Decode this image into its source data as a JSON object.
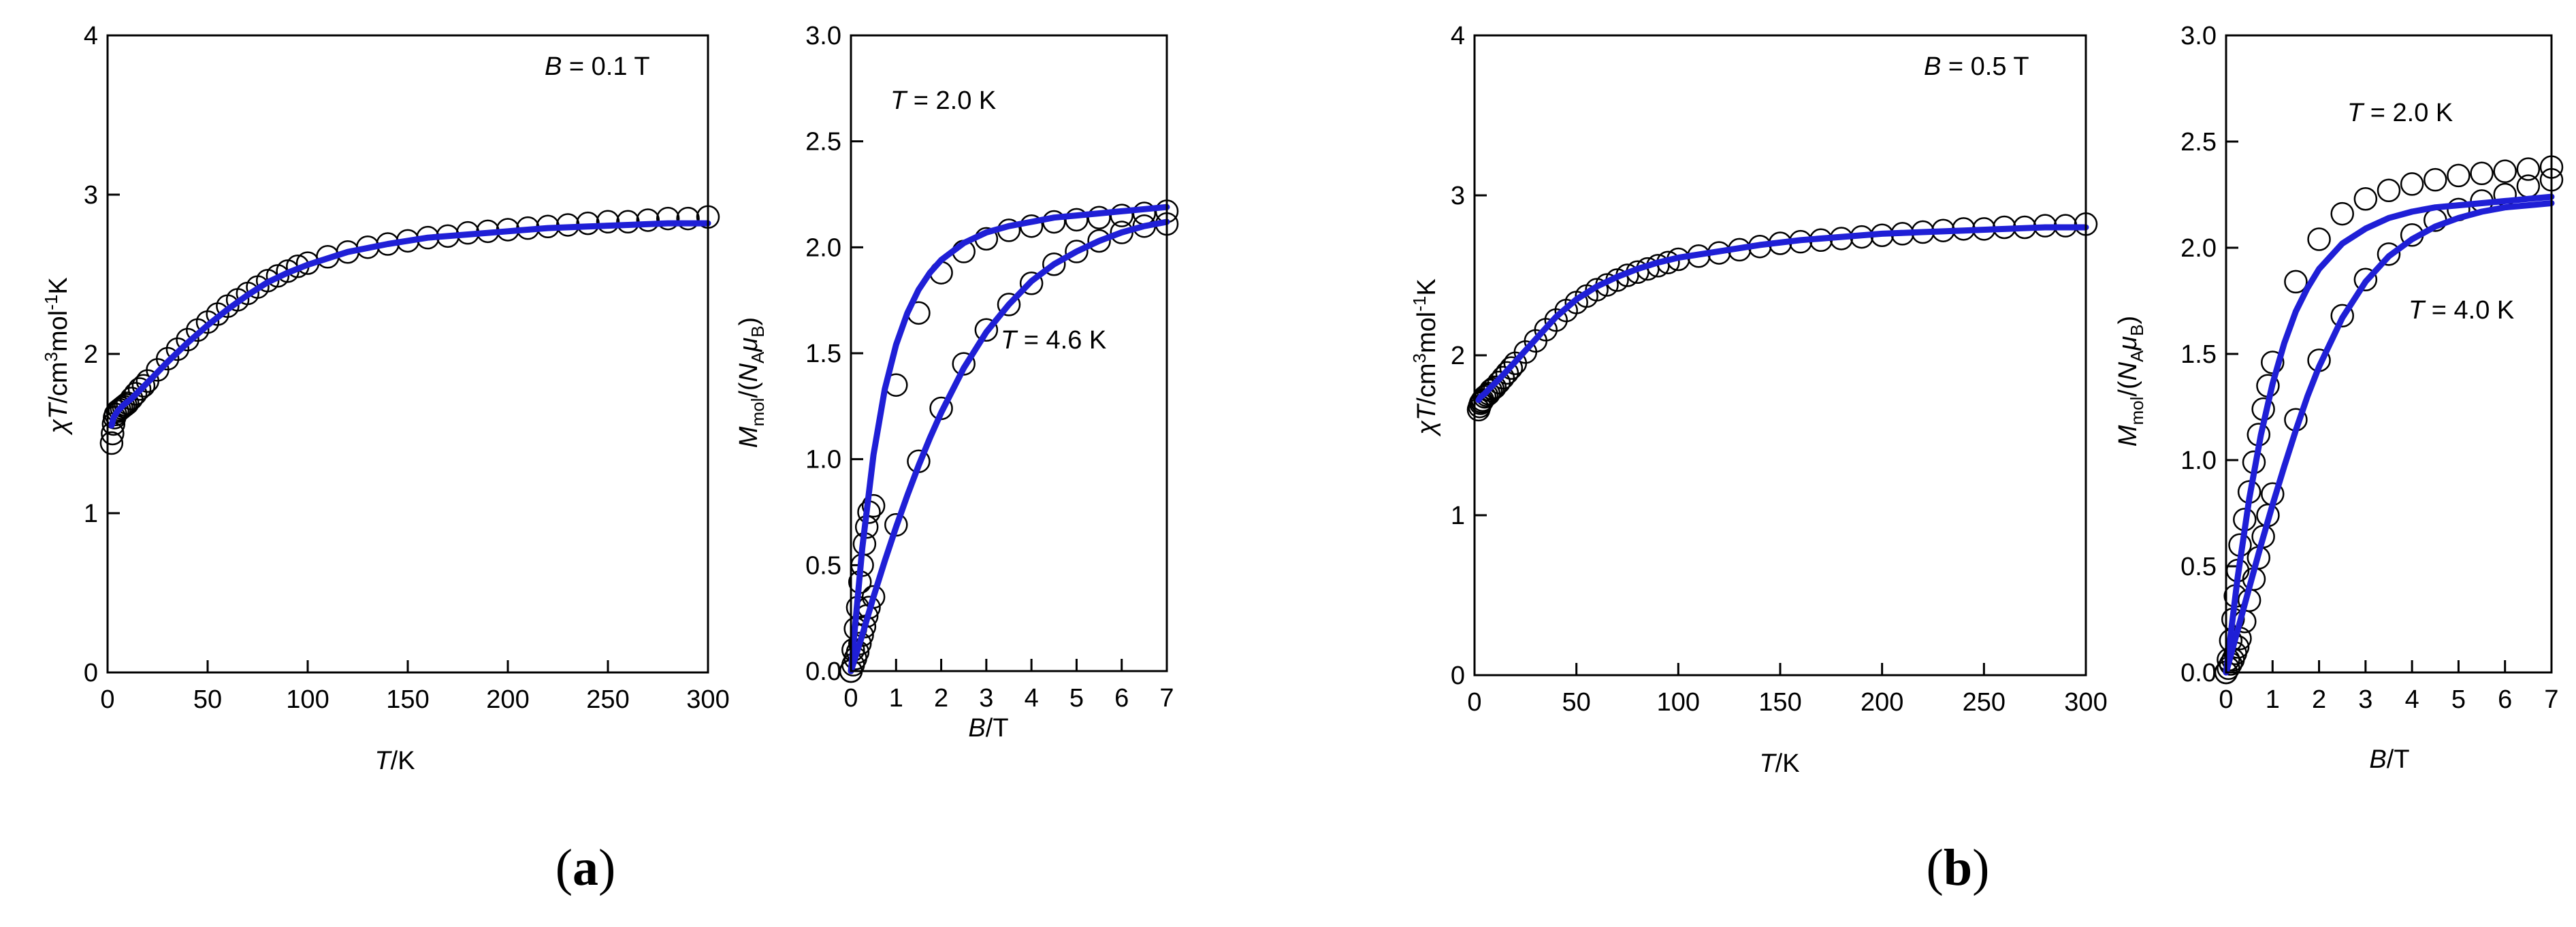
{
  "colors": {
    "fit": "#1f1fd6",
    "marker": "#000000",
    "axis": "#000000"
  },
  "panel_labels": [
    {
      "open": "(",
      "letter": "a",
      "close": ")"
    },
    {
      "open": "(",
      "letter": "b",
      "close": ")"
    }
  ],
  "chart_data": [
    {
      "type": "scatter",
      "panel": "a",
      "annotation": {
        "var": "B",
        "text": " = 0.1 T"
      },
      "xlabel": {
        "var": "T",
        "unit": "/K"
      },
      "ylabel": {
        "var": "χT",
        "unit": "/cm",
        "sup1": "3",
        "mid": "mol",
        "sup2": "-1",
        "end": "K"
      },
      "xlim": [
        0,
        300
      ],
      "ylim": [
        0,
        4
      ],
      "xticks": [
        0,
        50,
        100,
        150,
        200,
        250,
        300
      ],
      "yticks": [
        0,
        1,
        2,
        3,
        4
      ],
      "ytick_labels": [
        "0",
        "1",
        "2",
        "3",
        "4"
      ],
      "series": [
        {
          "kind": "markers",
          "x": [
            2,
            2.5,
            3,
            3.5,
            4,
            5,
            6,
            7,
            8,
            9,
            10,
            12,
            14,
            16,
            18,
            20,
            25,
            30,
            35,
            40,
            45,
            50,
            55,
            60,
            65,
            70,
            75,
            80,
            85,
            90,
            95,
            100,
            110,
            120,
            130,
            140,
            150,
            160,
            170,
            180,
            190,
            200,
            210,
            220,
            230,
            240,
            250,
            260,
            270,
            280,
            290,
            300
          ],
          "y": [
            1.44,
            1.5,
            1.56,
            1.6,
            1.62,
            1.64,
            1.65,
            1.66,
            1.67,
            1.68,
            1.69,
            1.72,
            1.75,
            1.78,
            1.8,
            1.83,
            1.9,
            1.97,
            2.03,
            2.09,
            2.15,
            2.2,
            2.25,
            2.3,
            2.34,
            2.38,
            2.42,
            2.46,
            2.49,
            2.52,
            2.55,
            2.57,
            2.61,
            2.64,
            2.67,
            2.69,
            2.71,
            2.73,
            2.74,
            2.76,
            2.77,
            2.78,
            2.79,
            2.8,
            2.81,
            2.82,
            2.83,
            2.83,
            2.84,
            2.85,
            2.85,
            2.86
          ]
        },
        {
          "kind": "fit",
          "x": [
            2,
            3,
            5,
            8,
            12,
            20,
            30,
            40,
            50,
            60,
            70,
            80,
            90,
            100,
            120,
            140,
            160,
            180,
            200,
            220,
            240,
            260,
            280,
            300
          ],
          "y": [
            1.55,
            1.6,
            1.64,
            1.68,
            1.72,
            1.82,
            1.95,
            2.07,
            2.18,
            2.28,
            2.37,
            2.45,
            2.51,
            2.56,
            2.64,
            2.69,
            2.73,
            2.75,
            2.77,
            2.79,
            2.8,
            2.81,
            2.82,
            2.82
          ]
        }
      ]
    },
    {
      "type": "scatter",
      "panel": "a",
      "annotations": [
        {
          "var": "T",
          "text": " = 2.0 K"
        },
        {
          "var": "T",
          "text": " = 4.6 K"
        }
      ],
      "xlabel": {
        "var": "B",
        "unit": "/T"
      },
      "ylabel": {
        "var": "M",
        "sub1": "mol",
        "mid": "/(",
        "var2": "N",
        "sub2": "A",
        "var3": "μ",
        "sub3": "B",
        "end": ")"
      },
      "xlim": [
        0,
        7
      ],
      "ylim": [
        0,
        3
      ],
      "xticks": [
        0,
        1,
        2,
        3,
        4,
        5,
        6,
        7
      ],
      "yticks": [
        0,
        0.5,
        1,
        1.5,
        2,
        2.5,
        3
      ],
      "ytick_labels": [
        "0.0",
        "0.5",
        "1.0",
        "1.5",
        "2.0",
        "2.5",
        "3.0"
      ],
      "series": [
        {
          "kind": "markers",
          "label_ref": "T = 2.0 K",
          "x": [
            0,
            0.05,
            0.1,
            0.15,
            0.2,
            0.25,
            0.3,
            0.35,
            0.4,
            0.5,
            1.0,
            1.5,
            2.0,
            2.5,
            3.0,
            3.5,
            4.0,
            4.5,
            5.0,
            5.5,
            6.0,
            6.5,
            7.0
          ],
          "y": [
            0.0,
            0.1,
            0.2,
            0.3,
            0.42,
            0.5,
            0.6,
            0.68,
            0.75,
            0.78,
            1.35,
            1.69,
            1.88,
            1.98,
            2.04,
            2.08,
            2.1,
            2.12,
            2.13,
            2.14,
            2.15,
            2.16,
            2.17
          ]
        },
        {
          "kind": "markers",
          "label_ref": "T = 4.6 K",
          "x": [
            0,
            0.05,
            0.1,
            0.15,
            0.2,
            0.25,
            0.3,
            0.35,
            0.4,
            0.5,
            1.0,
            1.5,
            2.0,
            2.5,
            3.0,
            3.5,
            4.0,
            4.5,
            5.0,
            5.5,
            6.0,
            6.5,
            7.0
          ],
          "y": [
            0.0,
            0.03,
            0.06,
            0.09,
            0.13,
            0.17,
            0.21,
            0.26,
            0.3,
            0.35,
            0.69,
            0.99,
            1.24,
            1.45,
            1.61,
            1.73,
            1.83,
            1.92,
            1.98,
            2.03,
            2.07,
            2.1,
            2.11
          ]
        },
        {
          "kind": "fit",
          "x": [
            0,
            0.25,
            0.5,
            0.75,
            1,
            1.25,
            1.5,
            1.75,
            2,
            2.5,
            3,
            3.5,
            4,
            4.5,
            5,
            5.5,
            6,
            6.5,
            7
          ],
          "y": [
            0.0,
            0.58,
            1.02,
            1.33,
            1.54,
            1.69,
            1.8,
            1.88,
            1.94,
            2.02,
            2.07,
            2.1,
            2.12,
            2.14,
            2.15,
            2.16,
            2.17,
            2.18,
            2.19
          ]
        },
        {
          "kind": "fit",
          "x": [
            0,
            0.25,
            0.5,
            0.75,
            1,
            1.25,
            1.5,
            1.75,
            2,
            2.5,
            3,
            3.5,
            4,
            4.5,
            5,
            5.5,
            6,
            6.5,
            7
          ],
          "y": [
            0.0,
            0.17,
            0.35,
            0.52,
            0.68,
            0.83,
            0.97,
            1.1,
            1.22,
            1.43,
            1.6,
            1.73,
            1.84,
            1.92,
            1.98,
            2.03,
            2.07,
            2.1,
            2.12
          ]
        }
      ]
    },
    {
      "type": "scatter",
      "panel": "b",
      "annotation": {
        "var": "B",
        "text": " = 0.5 T"
      },
      "xlabel": {
        "var": "T",
        "unit": "/K"
      },
      "ylabel": {
        "var": "χT",
        "unit": "/cm",
        "sup1": "3",
        "mid": "mol",
        "sup2": "-1",
        "end": "K"
      },
      "xlim": [
        0,
        300
      ],
      "ylim": [
        0,
        4
      ],
      "xticks": [
        0,
        50,
        100,
        150,
        200,
        250,
        300
      ],
      "yticks": [
        0,
        1,
        2,
        3,
        4
      ],
      "ytick_labels": [
        "0",
        "1",
        "2",
        "3",
        "4"
      ],
      "series": [
        {
          "kind": "markers",
          "x": [
            2,
            2.5,
            3,
            3.5,
            4,
            5,
            6,
            7,
            8,
            9,
            10,
            12,
            14,
            16,
            18,
            20,
            25,
            30,
            35,
            40,
            45,
            50,
            55,
            60,
            65,
            70,
            75,
            80,
            85,
            90,
            95,
            100,
            110,
            120,
            130,
            140,
            150,
            160,
            170,
            180,
            190,
            200,
            210,
            220,
            230,
            240,
            250,
            260,
            270,
            280,
            290,
            300
          ],
          "y": [
            1.66,
            1.68,
            1.7,
            1.71,
            1.72,
            1.74,
            1.75,
            1.76,
            1.78,
            1.79,
            1.8,
            1.83,
            1.86,
            1.89,
            1.92,
            1.95,
            2.02,
            2.09,
            2.16,
            2.22,
            2.28,
            2.33,
            2.37,
            2.41,
            2.44,
            2.47,
            2.5,
            2.52,
            2.54,
            2.56,
            2.58,
            2.6,
            2.62,
            2.64,
            2.66,
            2.68,
            2.7,
            2.71,
            2.72,
            2.73,
            2.74,
            2.75,
            2.76,
            2.77,
            2.78,
            2.79,
            2.79,
            2.8,
            2.8,
            2.81,
            2.81,
            2.82
          ]
        },
        {
          "kind": "fit",
          "x": [
            2,
            3,
            5,
            8,
            12,
            20,
            30,
            40,
            50,
            60,
            70,
            80,
            90,
            100,
            120,
            140,
            160,
            180,
            200,
            220,
            240,
            260,
            280,
            300
          ],
          "y": [
            1.72,
            1.74,
            1.76,
            1.8,
            1.85,
            1.96,
            2.1,
            2.24,
            2.35,
            2.43,
            2.49,
            2.54,
            2.58,
            2.61,
            2.65,
            2.69,
            2.72,
            2.74,
            2.76,
            2.77,
            2.78,
            2.79,
            2.8,
            2.8
          ]
        }
      ]
    },
    {
      "type": "scatter",
      "panel": "b",
      "annotations": [
        {
          "var": "T",
          "text": " = 2.0 K"
        },
        {
          "var": "T",
          "text": " = 4.0 K"
        }
      ],
      "xlabel": {
        "var": "B",
        "unit": "/T"
      },
      "ylabel": {
        "var": "M",
        "sub1": "mol",
        "mid": "/(",
        "var2": "N",
        "sub2": "A",
        "var3": "μ",
        "sub3": "B",
        "end": ")"
      },
      "xlim": [
        0,
        7
      ],
      "ylim": [
        0,
        3
      ],
      "xticks": [
        0,
        1,
        2,
        3,
        4,
        5,
        6,
        7
      ],
      "yticks": [
        0,
        0.5,
        1,
        1.5,
        2,
        2.5,
        3
      ],
      "ytick_labels": [
        "0.0",
        "0.5",
        "1.0",
        "1.5",
        "2.0",
        "2.5",
        "3.0"
      ],
      "series": [
        {
          "kind": "markers",
          "label_ref": "T = 2.0 K",
          "x": [
            0,
            0.05,
            0.1,
            0.15,
            0.2,
            0.25,
            0.3,
            0.4,
            0.5,
            0.6,
            0.7,
            0.8,
            0.9,
            1.0,
            1.5,
            2.0,
            2.5,
            3.0,
            3.5,
            4.0,
            4.5,
            5.0,
            5.5,
            6.0,
            6.5,
            7.0
          ],
          "y": [
            0.0,
            0.06,
            0.15,
            0.25,
            0.36,
            0.48,
            0.6,
            0.72,
            0.85,
            0.99,
            1.12,
            1.24,
            1.35,
            1.46,
            1.84,
            2.04,
            2.16,
            2.23,
            2.27,
            2.3,
            2.32,
            2.34,
            2.35,
            2.36,
            2.37,
            2.38
          ]
        },
        {
          "kind": "markers",
          "label_ref": "T = 4.0 K",
          "x": [
            0,
            0.05,
            0.1,
            0.15,
            0.2,
            0.25,
            0.3,
            0.4,
            0.5,
            0.6,
            0.7,
            0.8,
            0.9,
            1.0,
            1.5,
            2.0,
            2.5,
            3.0,
            3.5,
            4.0,
            4.5,
            5.0,
            5.5,
            6.0,
            6.5,
            7.0
          ],
          "y": [
            0.0,
            0.02,
            0.04,
            0.06,
            0.09,
            0.12,
            0.16,
            0.24,
            0.34,
            0.44,
            0.54,
            0.64,
            0.74,
            0.84,
            1.19,
            1.47,
            1.68,
            1.85,
            1.97,
            2.06,
            2.13,
            2.18,
            2.22,
            2.25,
            2.29,
            2.32
          ]
        },
        {
          "kind": "fit",
          "x": [
            0,
            0.25,
            0.5,
            0.75,
            1,
            1.25,
            1.5,
            1.75,
            2,
            2.5,
            3,
            3.5,
            4,
            4.5,
            5,
            5.5,
            6,
            6.5,
            7
          ],
          "y": [
            0.0,
            0.45,
            0.82,
            1.12,
            1.36,
            1.55,
            1.7,
            1.81,
            1.9,
            2.02,
            2.09,
            2.14,
            2.17,
            2.19,
            2.2,
            2.21,
            2.22,
            2.23,
            2.24
          ]
        },
        {
          "kind": "fit",
          "x": [
            0,
            0.25,
            0.5,
            0.75,
            1,
            1.25,
            1.5,
            1.75,
            2,
            2.5,
            3,
            3.5,
            4,
            4.5,
            5,
            5.5,
            6,
            6.5,
            7
          ],
          "y": [
            0.0,
            0.2,
            0.4,
            0.6,
            0.79,
            0.97,
            1.14,
            1.3,
            1.44,
            1.67,
            1.84,
            1.96,
            2.04,
            2.1,
            2.14,
            2.17,
            2.19,
            2.2,
            2.21
          ]
        }
      ]
    }
  ]
}
